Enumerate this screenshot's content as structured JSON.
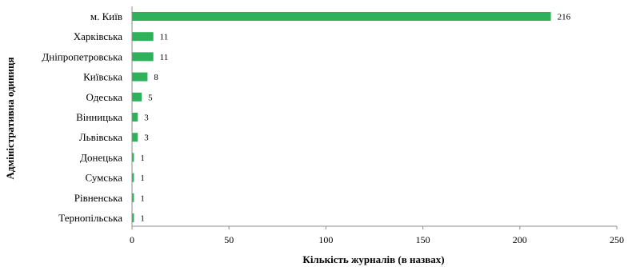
{
  "chart_data": {
    "type": "bar",
    "orientation": "horizontal",
    "categories": [
      "м. Київ",
      "Харківська",
      "Дніпропетровська",
      "Київська",
      "Одеська",
      "Вінницька",
      "Львівська",
      "Донецька",
      "Сумська",
      "Рівненська",
      "Тернопільська"
    ],
    "values": [
      216,
      11,
      11,
      8,
      5,
      3,
      3,
      1,
      1,
      1,
      1
    ],
    "xlabel": "Кількість журналів (в назвах)",
    "ylabel": "Адміністративна одиниця",
    "xlim": [
      0,
      250
    ],
    "xticks": [
      0,
      50,
      100,
      150,
      200,
      250
    ],
    "grid": false,
    "bar_color": "#2fb05a"
  }
}
